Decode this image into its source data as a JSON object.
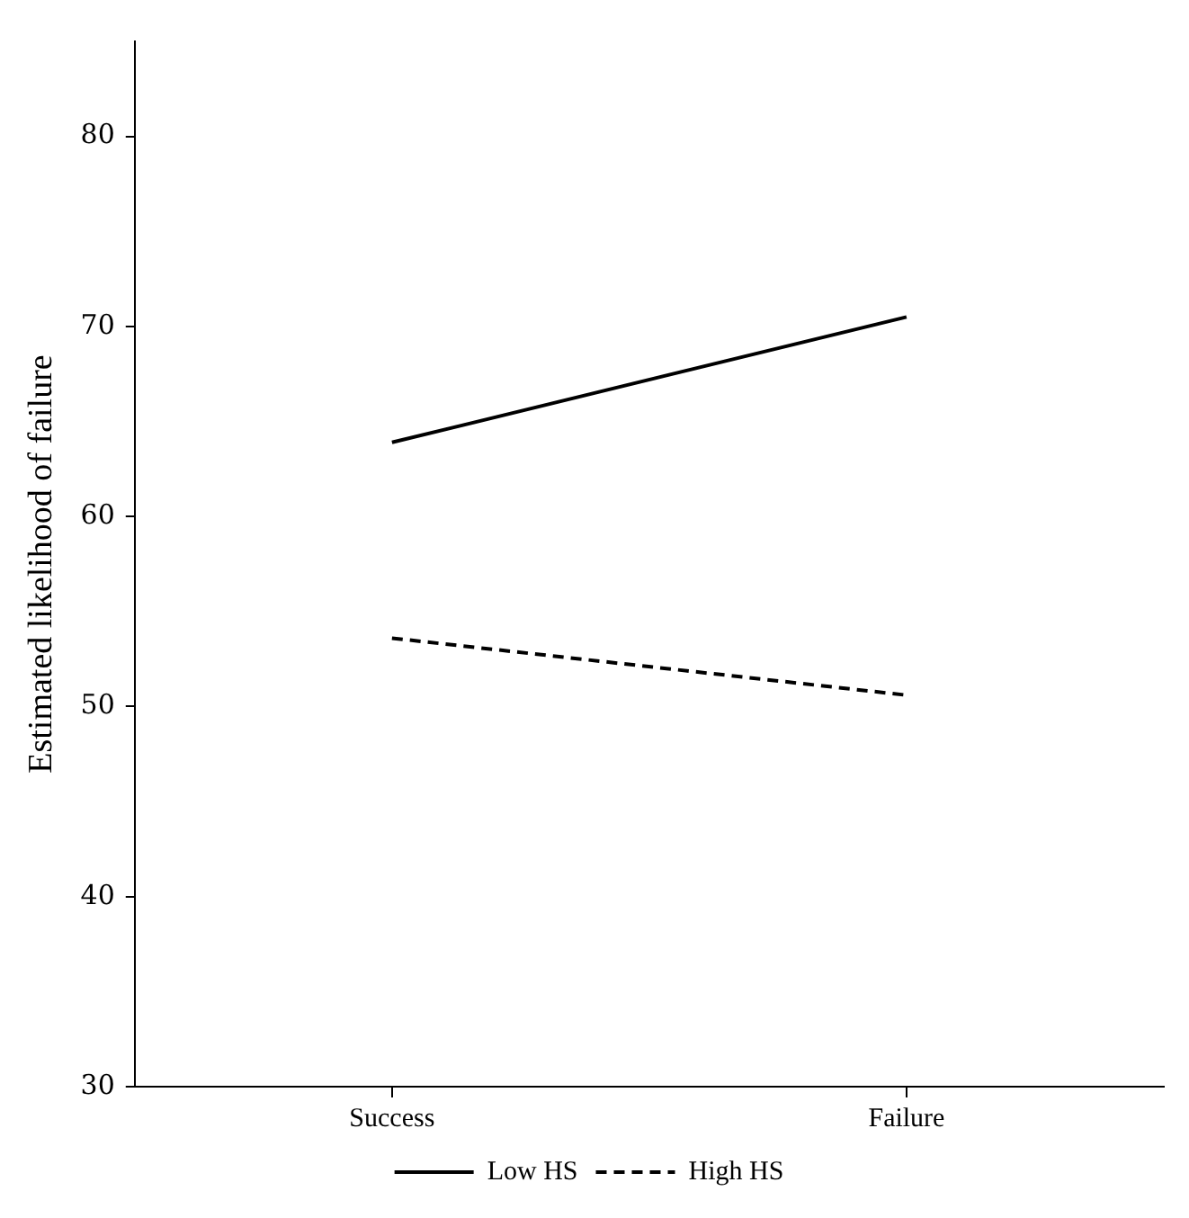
{
  "chart_data": {
    "type": "line",
    "ylabel": "Estimated likelihood of failure",
    "categories": [
      "Success",
      "Failure"
    ],
    "series": [
      {
        "name": "Low HS",
        "color": "#000000",
        "values": [
          63.9,
          70.5
        ],
        "line_style": "solid"
      },
      {
        "name": "High HS",
        "color": "#000000",
        "values": [
          53.6,
          50.6
        ],
        "line_style": "dashed"
      }
    ],
    "ylim": [
      30,
      85
    ],
    "yticks": [
      30,
      40,
      50,
      60,
      70,
      80
    ],
    "grid": false,
    "legend": "bottom",
    "marker": "none"
  }
}
